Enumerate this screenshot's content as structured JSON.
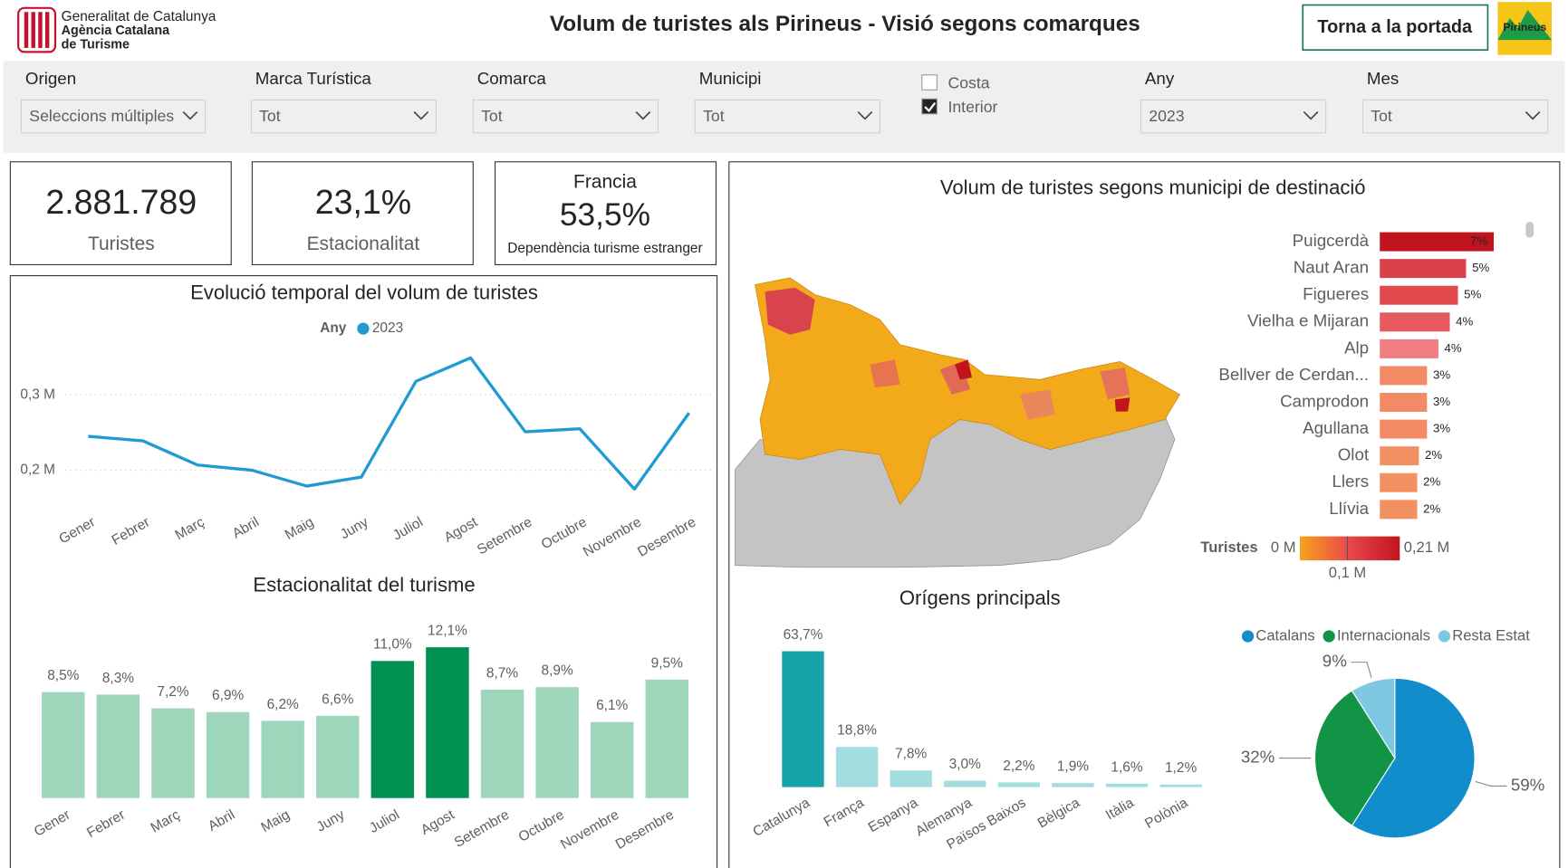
{
  "header": {
    "logo_lines": [
      "Generalitat de Catalunya",
      "Agència Catalana",
      "de Turisme"
    ],
    "title": "Volum de turistes als Pirineus - Visió segons comarques",
    "button": "Torna a la portada",
    "badge": "Pirineus"
  },
  "filters": [
    {
      "label": "Origen",
      "value": "Seleccions múltiples"
    },
    {
      "label": "Marca Turística",
      "value": "Tot"
    },
    {
      "label": "Comarca",
      "value": "Tot"
    },
    {
      "label": "Municipi",
      "value": "Tot"
    },
    {
      "label": "Any",
      "value": "2023"
    },
    {
      "label": "Mes",
      "value": "Tot"
    }
  ],
  "checkboxes": [
    {
      "label": "Costa",
      "checked": false
    },
    {
      "label": "Interior",
      "checked": true
    }
  ],
  "kpis": [
    {
      "value": "2.881.789",
      "label": "Turistes"
    },
    {
      "value": "23,1%",
      "label": "Estacionalitat"
    },
    {
      "title": "Francia",
      "value": "53,5%",
      "label": "Dependència turisme estranger"
    }
  ],
  "chart_data": [
    {
      "type": "line",
      "title": "Evolució temporal del volum de turistes",
      "legend_title": "Any",
      "categories": [
        "Gener",
        "Febrer",
        "Març",
        "Abril",
        "Maig",
        "Juny",
        "Juliol",
        "Agost",
        "Setembre",
        "Octubre",
        "Novembre",
        "Desembre"
      ],
      "series": [
        {
          "name": "2023",
          "color": "#1f9bd1",
          "values": [
            0.245,
            0.239,
            0.207,
            0.2,
            0.179,
            0.191,
            0.318,
            0.349,
            0.251,
            0.255,
            0.175,
            0.276
          ]
        }
      ],
      "ylim": [
        0.16,
        0.36
      ],
      "yticks": [
        {
          "value": 0.2,
          "label": "0,2 M"
        },
        {
          "value": 0.3,
          "label": "0,3 M"
        }
      ],
      "grid": true
    },
    {
      "type": "bar",
      "title": "Estacionalitat del turisme",
      "categories": [
        "Gener",
        "Febrer",
        "Març",
        "Abril",
        "Maig",
        "Juny",
        "Juliol",
        "Agost",
        "Setembre",
        "Octubre",
        "Novembre",
        "Desembre"
      ],
      "values": [
        8.5,
        8.3,
        7.2,
        6.9,
        6.2,
        6.6,
        11.0,
        12.1,
        8.7,
        8.9,
        6.1,
        9.5
      ],
      "value_labels": [
        "8,5%",
        "8,3%",
        "7,2%",
        "6,9%",
        "6,2%",
        "6,6%",
        "11,0%",
        "12,1%",
        "8,7%",
        "8,9%",
        "6,1%",
        "9,5%"
      ],
      "colors": [
        "#9dd6bb",
        "#9dd6bb",
        "#9dd6bb",
        "#9dd6bb",
        "#9dd6bb",
        "#9dd6bb",
        "#009150",
        "#009150",
        "#9dd6bb",
        "#9dd6bb",
        "#9dd6bb",
        "#9dd6bb"
      ],
      "ylim": [
        0,
        12.1
      ]
    },
    {
      "type": "hbar",
      "title": "Volum de turistes segons municipi de destinació",
      "categories": [
        "Puigcerdà",
        "Naut Aran",
        "Figueres",
        "Vielha e Mijaran",
        "Alp",
        "Bellver de Cerdan...",
        "Camprodon",
        "Agullana",
        "Olot",
        "Llers",
        "Llívia"
      ],
      "values": [
        7.0,
        5.3,
        4.8,
        4.3,
        3.6,
        2.9,
        2.9,
        2.9,
        2.4,
        2.3,
        2.3
      ],
      "value_labels": [
        "7%",
        "5%",
        "5%",
        "4%",
        "4%",
        "3%",
        "3%",
        "3%",
        "2%",
        "2%",
        "2%"
      ],
      "colors": [
        "#c0141f",
        "#dc4149",
        "#e1494f",
        "#e75b60",
        "#ee7d84",
        "#f28a66",
        "#f28a66",
        "#f28a66",
        "#f39062",
        "#f39062",
        "#f39062"
      ],
      "xlim": [
        0,
        7.0
      ],
      "color_scale": {
        "title": "Turistes",
        "range": [
          0,
          0.21
        ],
        "colors": [
          "#f7a21b",
          "#e8474c",
          "#c0141f"
        ],
        "ticks": [
          {
            "value": 0,
            "label": "0 M"
          },
          {
            "value": 0.1,
            "label": "0,1 M"
          },
          {
            "value": 0.21,
            "label": "0,21 M"
          }
        ]
      }
    },
    {
      "type": "bar",
      "title": "Orígens principals",
      "categories": [
        "Catalunya",
        "França",
        "Espanya",
        "Alemanya",
        "Països Baixos",
        "Bèlgica",
        "Itàlia",
        "Polònia"
      ],
      "values": [
        63.7,
        18.8,
        7.8,
        3.0,
        2.2,
        1.9,
        1.6,
        1.2
      ],
      "value_labels": [
        "63,7%",
        "18,8%",
        "7,8%",
        "3,0%",
        "2,2%",
        "1,9%",
        "1,6%",
        "1,2%"
      ],
      "colors": [
        "#14a3a8",
        "#a3dde0",
        "#a3dde0",
        "#a3dde0",
        "#a3dde0",
        "#a3dde0",
        "#a3dde0",
        "#a3dde0"
      ],
      "ylim": [
        0,
        63.7
      ]
    },
    {
      "type": "pie",
      "categories": [
        "Catalans",
        "Internacionals",
        "Resta Estat"
      ],
      "values": [
        59,
        32,
        9
      ],
      "value_labels": [
        "59%",
        "32%",
        "9%"
      ],
      "colors": [
        "#118dcb",
        "#119445",
        "#7fc8e2"
      ],
      "legend": "top-right"
    }
  ]
}
